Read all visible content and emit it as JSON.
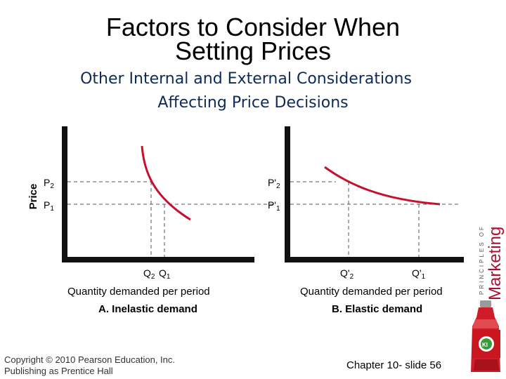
{
  "title": {
    "line1": "Factors to Consider When",
    "line2": "Setting Prices"
  },
  "subtitle": {
    "line1": "Other Internal and External Considerations",
    "line2": "Affecting Price Decisions"
  },
  "panel_a": {
    "y_axis_label": "Price",
    "p2": "P2",
    "p1": "P1",
    "q2": "Q2",
    "q1": "Q1",
    "x_axis_label": "Quantity demanded per period",
    "caption": "A. Inelastic demand"
  },
  "panel_b": {
    "p2": "P'2",
    "p1": "P'1",
    "q2": "Q'2",
    "q1": "Q'1",
    "x_axis_label": "Quantity demanded per period",
    "caption": "B. Elastic demand"
  },
  "brand": {
    "line1": "PRINCIPLES OF",
    "line2": "Marketing"
  },
  "footer": {
    "copyright_line1": "Copyright © 2010 Pearson Education, Inc.",
    "copyright_line2": "Publishing as Prentice Hall",
    "slide_label": "Chapter 10- slide 56"
  },
  "colors": {
    "curve": "#c8102e",
    "axis": "#111111",
    "guide": "#555555",
    "subtitle": "#0d2a5a"
  }
}
